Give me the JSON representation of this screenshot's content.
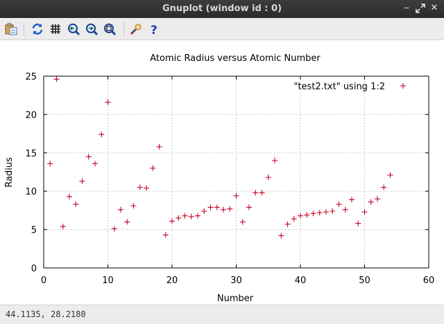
{
  "window": {
    "title": "Gnuplot (window id : 0)",
    "controls": [
      "minimize",
      "maximize",
      "close"
    ]
  },
  "toolbar": {
    "buttons": [
      {
        "name": "copy-to-clipboard",
        "icon": "clipboard-icon"
      },
      {
        "name": "replot",
        "icon": "refresh-icon"
      },
      {
        "name": "toggle-grid",
        "icon": "grid-icon"
      },
      {
        "name": "previous-zoom",
        "icon": "zoom-previous-icon"
      },
      {
        "name": "next-zoom",
        "icon": "zoom-next-icon"
      },
      {
        "name": "autoscale",
        "icon": "zoom-autoscale-icon"
      },
      {
        "name": "options",
        "icon": "wrench-icon"
      },
      {
        "name": "help",
        "icon": "help-icon"
      }
    ]
  },
  "status": {
    "coords": "44.1135,  28.2180"
  },
  "chart_data": {
    "type": "scatter",
    "title": "Atomic Radius versus Atomic Number",
    "xlabel": "Number",
    "ylabel": "Radius",
    "xlim": [
      0,
      60
    ],
    "ylim": [
      0,
      25
    ],
    "xticks": [
      0,
      10,
      20,
      30,
      40,
      50,
      60
    ],
    "yticks": [
      0,
      5,
      10,
      15,
      20,
      25
    ],
    "grid": true,
    "legend_position": "top-right",
    "series": [
      {
        "name": "\"test2.txt\" using 1:2",
        "color": "#c8001e",
        "marker": "plus",
        "x": [
          1,
          2,
          3,
          4,
          5,
          6,
          7,
          8,
          9,
          10,
          11,
          12,
          13,
          14,
          15,
          16,
          17,
          18,
          19,
          20,
          21,
          22,
          23,
          24,
          25,
          26,
          27,
          28,
          29,
          30,
          31,
          32,
          33,
          34,
          35,
          36,
          37,
          38,
          39,
          40,
          41,
          42,
          43,
          44,
          45,
          46,
          47,
          48,
          49,
          50,
          51,
          52,
          53,
          54
        ],
        "y": [
          13.6,
          24.6,
          5.4,
          9.3,
          8.3,
          11.3,
          14.5,
          13.6,
          17.4,
          21.6,
          5.1,
          7.6,
          6.0,
          8.1,
          10.5,
          10.4,
          13.0,
          15.8,
          4.3,
          6.1,
          6.5,
          6.8,
          6.7,
          6.8,
          7.4,
          7.9,
          7.9,
          7.6,
          7.7,
          9.4,
          6.0,
          7.9,
          9.8,
          9.8,
          11.8,
          14.0,
          4.2,
          5.7,
          6.4,
          6.8,
          6.9,
          7.1,
          7.2,
          7.3,
          7.4,
          8.3,
          7.6,
          8.9,
          5.8,
          7.3,
          8.6,
          9.0,
          10.5,
          12.1
        ]
      }
    ]
  }
}
